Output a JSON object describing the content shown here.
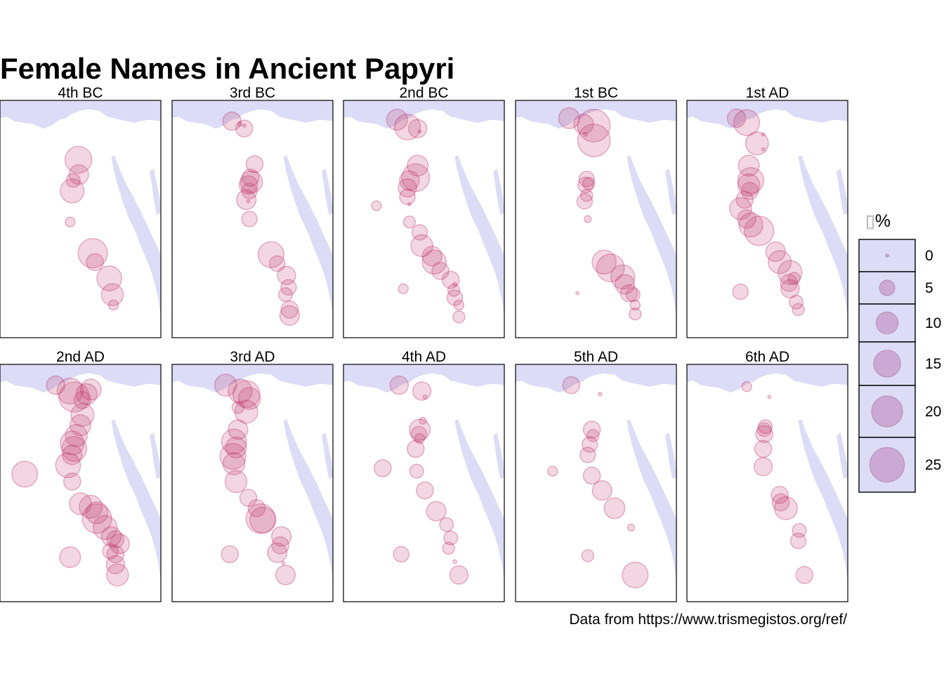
{
  "chart_data": {
    "type": "scatter",
    "title": "Female Names in Ancient Papyri",
    "caption": "Data from https://www.trismegistos.org/ref/",
    "legend": {
      "title": "%",
      "position": "right",
      "breaks": [
        0,
        5,
        10,
        15,
        20,
        25
      ]
    },
    "colors": {
      "point": "#c0306a",
      "water": "#dcdcf7",
      "panel_border": "#000000",
      "legend_key_fill": "#dcdcf7",
      "legend_point": "#c080b8"
    },
    "coordinate_system": "longitude / latitude",
    "panels": [
      {
        "label": "4th BC",
        "points": [
          {
            "lon": 30.8,
            "lat": 29.8,
            "pct": 15
          },
          {
            "lon": 30.82,
            "lat": 29.3,
            "pct": 8
          },
          {
            "lon": 30.55,
            "lat": 29.1,
            "pct": 4
          },
          {
            "lon": 30.5,
            "lat": 28.75,
            "pct": 12
          },
          {
            "lon": 30.4,
            "lat": 27.7,
            "pct": 2
          },
          {
            "lon": 31.5,
            "lat": 26.65,
            "pct": 18
          },
          {
            "lon": 31.6,
            "lat": 26.35,
            "pct": 6
          },
          {
            "lon": 32.3,
            "lat": 25.8,
            "pct": 13
          },
          {
            "lon": 32.45,
            "lat": 25.25,
            "pct": 10
          },
          {
            "lon": 32.5,
            "lat": 24.9,
            "pct": 2
          }
        ]
      },
      {
        "label": "3rd BC",
        "points": [
          {
            "lon": 29.9,
            "lat": 31.1,
            "pct": 7
          },
          {
            "lon": 30.3,
            "lat": 31.0,
            "pct": 0.3
          },
          {
            "lon": 30.5,
            "lat": 30.95,
            "pct": 0.2
          },
          {
            "lon": 30.5,
            "lat": 30.85,
            "pct": 6
          },
          {
            "lon": 31.0,
            "lat": 29.65,
            "pct": 6
          },
          {
            "lon": 30.8,
            "lat": 29.2,
            "pct": 6
          },
          {
            "lon": 30.85,
            "lat": 29.05,
            "pct": 10
          },
          {
            "lon": 30.7,
            "lat": 28.95,
            "pct": 7
          },
          {
            "lon": 30.75,
            "lat": 28.75,
            "pct": 5
          },
          {
            "lon": 30.6,
            "lat": 28.45,
            "pct": 8
          },
          {
            "lon": 30.7,
            "lat": 28.4,
            "pct": 0.2
          },
          {
            "lon": 30.75,
            "lat": 27.8,
            "pct": 5
          },
          {
            "lon": 31.8,
            "lat": 26.6,
            "pct": 14
          },
          {
            "lon": 32.1,
            "lat": 26.3,
            "pct": 5
          },
          {
            "lon": 32.55,
            "lat": 25.9,
            "pct": 7
          },
          {
            "lon": 32.65,
            "lat": 25.5,
            "pct": 5
          },
          {
            "lon": 32.5,
            "lat": 25.25,
            "pct": 4
          },
          {
            "lon": 32.7,
            "lat": 24.75,
            "pct": 6
          },
          {
            "lon": 32.7,
            "lat": 24.55,
            "pct": 8
          }
        ]
      },
      {
        "label": "2nd BC",
        "points": [
          {
            "lon": 29.6,
            "lat": 31.15,
            "pct": 9
          },
          {
            "lon": 30.1,
            "lat": 30.9,
            "pct": 14
          },
          {
            "lon": 30.6,
            "lat": 30.85,
            "pct": 7
          },
          {
            "lon": 30.7,
            "lat": 30.75,
            "pct": 0.2
          },
          {
            "lon": 30.6,
            "lat": 29.6,
            "pct": 9
          },
          {
            "lon": 30.5,
            "lat": 29.2,
            "pct": 16
          },
          {
            "lon": 30.2,
            "lat": 29.1,
            "pct": 8
          },
          {
            "lon": 30.1,
            "lat": 28.85,
            "pct": 7
          },
          {
            "lon": 30.1,
            "lat": 28.55,
            "pct": 5
          },
          {
            "lon": 30.2,
            "lat": 28.3,
            "pct": 0.2
          },
          {
            "lon": 28.6,
            "lat": 28.25,
            "pct": 2
          },
          {
            "lon": 30.2,
            "lat": 27.7,
            "pct": 3
          },
          {
            "lon": 30.7,
            "lat": 27.35,
            "pct": 5
          },
          {
            "lon": 30.8,
            "lat": 26.9,
            "pct": 10
          },
          {
            "lon": 31.3,
            "lat": 26.55,
            "pct": 8
          },
          {
            "lon": 31.4,
            "lat": 26.35,
            "pct": 12
          },
          {
            "lon": 31.7,
            "lat": 26.05,
            "pct": 6
          },
          {
            "lon": 32.2,
            "lat": 25.75,
            "pct": 6
          },
          {
            "lon": 32.4,
            "lat": 25.6,
            "pct": 0.3
          },
          {
            "lon": 32.35,
            "lat": 25.4,
            "pct": 3
          },
          {
            "lon": 32.4,
            "lat": 25.15,
            "pct": 5
          },
          {
            "lon": 29.9,
            "lat": 25.45,
            "pct": 2
          },
          {
            "lon": 32.6,
            "lat": 24.9,
            "pct": 2
          },
          {
            "lon": 32.6,
            "lat": 24.5,
            "pct": 3
          }
        ]
      },
      {
        "label": "1st BC",
        "points": [
          {
            "lon": 29.6,
            "lat": 31.2,
            "pct": 9
          },
          {
            "lon": 30.3,
            "lat": 31.0,
            "pct": 8
          },
          {
            "lon": 30.8,
            "lat": 30.95,
            "pct": 22
          },
          {
            "lon": 30.4,
            "lat": 30.65,
            "pct": 0.3
          },
          {
            "lon": 30.8,
            "lat": 30.45,
            "pct": 22
          },
          {
            "lon": 30.45,
            "lat": 29.15,
            "pct": 5
          },
          {
            "lon": 30.55,
            "lat": 29.0,
            "pct": 3
          },
          {
            "lon": 30.4,
            "lat": 28.95,
            "pct": 5
          },
          {
            "lon": 30.45,
            "lat": 28.6,
            "pct": 3
          },
          {
            "lon": 30.35,
            "lat": 28.4,
            "pct": 5
          },
          {
            "lon": 30.5,
            "lat": 27.8,
            "pct": 1
          },
          {
            "lon": 31.3,
            "lat": 26.35,
            "pct": 12
          },
          {
            "lon": 31.6,
            "lat": 26.15,
            "pct": 16
          },
          {
            "lon": 32.2,
            "lat": 25.85,
            "pct": 12
          },
          {
            "lon": 32.3,
            "lat": 25.6,
            "pct": 8
          },
          {
            "lon": 32.5,
            "lat": 25.3,
            "pct": 6
          },
          {
            "lon": 32.7,
            "lat": 25.25,
            "pct": 4
          },
          {
            "lon": 32.8,
            "lat": 24.9,
            "pct": 2
          },
          {
            "lon": 32.8,
            "lat": 24.6,
            "pct": 3
          },
          {
            "lon": 30.0,
            "lat": 25.3,
            "pct": 0.2
          }
        ]
      },
      {
        "label": "1st AD",
        "points": [
          {
            "lon": 29.4,
            "lat": 31.2,
            "pct": 7
          },
          {
            "lon": 29.9,
            "lat": 31.05,
            "pct": 14
          },
          {
            "lon": 30.7,
            "lat": 30.65,
            "pct": 0.2
          },
          {
            "lon": 30.4,
            "lat": 30.35,
            "pct": 11
          },
          {
            "lon": 30.7,
            "lat": 30.15,
            "pct": 0.2
          },
          {
            "lon": 30.0,
            "lat": 29.6,
            "pct": 9
          },
          {
            "lon": 30.1,
            "lat": 29.1,
            "pct": 14
          },
          {
            "lon": 30.0,
            "lat": 28.95,
            "pct": 10
          },
          {
            "lon": 30.05,
            "lat": 28.75,
            "pct": 6
          },
          {
            "lon": 29.8,
            "lat": 28.45,
            "pct": 6
          },
          {
            "lon": 29.6,
            "lat": 28.15,
            "pct": 10
          },
          {
            "lon": 29.9,
            "lat": 27.8,
            "pct": 7
          },
          {
            "lon": 30.1,
            "lat": 27.6,
            "pct": 12
          },
          {
            "lon": 30.5,
            "lat": 27.4,
            "pct": 18
          },
          {
            "lon": 31.3,
            "lat": 26.7,
            "pct": 8
          },
          {
            "lon": 31.5,
            "lat": 26.35,
            "pct": 11
          },
          {
            "lon": 32.0,
            "lat": 26.0,
            "pct": 12
          },
          {
            "lon": 32.2,
            "lat": 25.8,
            "pct": 3
          },
          {
            "lon": 31.95,
            "lat": 25.65,
            "pct": 6
          },
          {
            "lon": 32.0,
            "lat": 25.45,
            "pct": 7
          },
          {
            "lon": 32.3,
            "lat": 25.0,
            "pct": 4
          },
          {
            "lon": 32.4,
            "lat": 24.75,
            "pct": 3
          },
          {
            "lon": 29.6,
            "lat": 25.35,
            "pct": 5
          }
        ]
      },
      {
        "label": "2nd AD",
        "points": [
          {
            "lon": 29.7,
            "lat": 31.1,
            "pct": 7
          },
          {
            "lon": 30.4,
            "lat": 30.9,
            "pct": 14
          },
          {
            "lon": 30.6,
            "lat": 30.7,
            "pct": 19
          },
          {
            "lon": 31.2,
            "lat": 30.8,
            "pct": 9
          },
          {
            "lon": 31.4,
            "lat": 30.95,
            "pct": 9
          },
          {
            "lon": 31.0,
            "lat": 30.6,
            "pct": 6
          },
          {
            "lon": 31.0,
            "lat": 30.1,
            "pct": 11
          },
          {
            "lon": 30.9,
            "lat": 29.75,
            "pct": 9
          },
          {
            "lon": 30.7,
            "lat": 29.4,
            "pct": 10
          },
          {
            "lon": 30.5,
            "lat": 29.15,
            "pct": 12
          },
          {
            "lon": 30.6,
            "lat": 28.95,
            "pct": 13
          },
          {
            "lon": 30.5,
            "lat": 28.75,
            "pct": 8
          },
          {
            "lon": 30.3,
            "lat": 28.4,
            "pct": 13
          },
          {
            "lon": 30.5,
            "lat": 27.85,
            "pct": 6
          },
          {
            "lon": 28.2,
            "lat": 28.1,
            "pct": 14
          },
          {
            "lon": 30.9,
            "lat": 27.1,
            "pct": 10
          },
          {
            "lon": 31.4,
            "lat": 27.0,
            "pct": 11
          },
          {
            "lon": 31.7,
            "lat": 26.8,
            "pct": 10
          },
          {
            "lon": 31.7,
            "lat": 26.6,
            "pct": 18
          },
          {
            "lon": 32.1,
            "lat": 26.3,
            "pct": 12
          },
          {
            "lon": 32.4,
            "lat": 26.0,
            "pct": 8
          },
          {
            "lon": 32.6,
            "lat": 25.9,
            "pct": 6
          },
          {
            "lon": 32.8,
            "lat": 25.75,
            "pct": 8
          },
          {
            "lon": 32.35,
            "lat": 25.5,
            "pct": 5
          },
          {
            "lon": 32.6,
            "lat": 25.4,
            "pct": 6
          },
          {
            "lon": 32.6,
            "lat": 25.05,
            "pct": 7
          },
          {
            "lon": 32.7,
            "lat": 24.7,
            "pct": 10
          },
          {
            "lon": 30.4,
            "lat": 25.3,
            "pct": 9
          }
        ]
      },
      {
        "label": "3rd AD",
        "points": [
          {
            "lon": 29.6,
            "lat": 31.1,
            "pct": 10
          },
          {
            "lon": 30.3,
            "lat": 30.9,
            "pct": 12
          },
          {
            "lon": 30.6,
            "lat": 30.8,
            "pct": 15
          },
          {
            "lon": 30.75,
            "lat": 30.65,
            "pct": 10
          },
          {
            "lon": 30.2,
            "lat": 30.35,
            "pct": 3
          },
          {
            "lon": 30.6,
            "lat": 30.2,
            "pct": 11
          },
          {
            "lon": 30.2,
            "lat": 29.6,
            "pct": 8
          },
          {
            "lon": 30.0,
            "lat": 29.2,
            "pct": 13
          },
          {
            "lon": 30.1,
            "lat": 29.0,
            "pct": 9
          },
          {
            "lon": 29.95,
            "lat": 28.7,
            "pct": 14
          },
          {
            "lon": 30.0,
            "lat": 28.45,
            "pct": 10
          },
          {
            "lon": 30.1,
            "lat": 27.85,
            "pct": 10
          },
          {
            "lon": 30.7,
            "lat": 27.3,
            "pct": 6
          },
          {
            "lon": 31.1,
            "lat": 26.95,
            "pct": 6
          },
          {
            "lon": 31.3,
            "lat": 26.6,
            "pct": 18
          },
          {
            "lon": 31.4,
            "lat": 26.55,
            "pct": 14
          },
          {
            "lon": 32.3,
            "lat": 26.0,
            "pct": 8
          },
          {
            "lon": 32.25,
            "lat": 25.7,
            "pct": 6
          },
          {
            "lon": 32.1,
            "lat": 25.45,
            "pct": 8
          },
          {
            "lon": 32.4,
            "lat": 25.1,
            "pct": 0.2
          },
          {
            "lon": 32.5,
            "lat": 24.7,
            "pct": 8
          },
          {
            "lon": 29.8,
            "lat": 25.4,
            "pct": 6
          }
        ]
      },
      {
        "label": "4th AD",
        "points": [
          {
            "lon": 29.7,
            "lat": 31.1,
            "pct": 7
          },
          {
            "lon": 30.8,
            "lat": 30.9,
            "pct": 7
          },
          {
            "lon": 30.95,
            "lat": 30.7,
            "pct": 0.3
          },
          {
            "lon": 30.85,
            "lat": 29.9,
            "pct": 1
          },
          {
            "lon": 30.7,
            "lat": 29.6,
            "pct": 9
          },
          {
            "lon": 30.65,
            "lat": 29.45,
            "pct": 5
          },
          {
            "lon": 30.7,
            "lat": 29.3,
            "pct": 2
          },
          {
            "lon": 30.5,
            "lat": 28.95,
            "pct": 6
          },
          {
            "lon": 28.9,
            "lat": 28.3,
            "pct": 6
          },
          {
            "lon": 30.55,
            "lat": 28.2,
            "pct": 4
          },
          {
            "lon": 30.95,
            "lat": 27.55,
            "pct": 6
          },
          {
            "lon": 31.5,
            "lat": 26.85,
            "pct": 8
          },
          {
            "lon": 32.0,
            "lat": 26.4,
            "pct": 4
          },
          {
            "lon": 32.2,
            "lat": 25.95,
            "pct": 4
          },
          {
            "lon": 32.1,
            "lat": 25.6,
            "pct": 3
          },
          {
            "lon": 32.4,
            "lat": 25.15,
            "pct": 0.3
          },
          {
            "lon": 32.6,
            "lat": 24.7,
            "pct": 7
          },
          {
            "lon": 29.8,
            "lat": 25.4,
            "pct": 5
          }
        ]
      },
      {
        "label": "5th AD",
        "points": [
          {
            "lon": 29.7,
            "lat": 31.1,
            "pct": 6
          },
          {
            "lon": 31.1,
            "lat": 30.8,
            "pct": 0.3
          },
          {
            "lon": 30.7,
            "lat": 29.6,
            "pct": 6
          },
          {
            "lon": 30.75,
            "lat": 29.4,
            "pct": 3
          },
          {
            "lon": 30.6,
            "lat": 29.1,
            "pct": 5
          },
          {
            "lon": 30.5,
            "lat": 28.75,
            "pct": 5
          },
          {
            "lon": 28.8,
            "lat": 28.2,
            "pct": 2
          },
          {
            "lon": 30.7,
            "lat": 28.05,
            "pct": 6
          },
          {
            "lon": 31.2,
            "lat": 27.55,
            "pct": 8
          },
          {
            "lon": 31.8,
            "lat": 26.95,
            "pct": 9
          },
          {
            "lon": 32.6,
            "lat": 26.3,
            "pct": 1
          },
          {
            "lon": 30.5,
            "lat": 25.35,
            "pct": 3
          },
          {
            "lon": 32.8,
            "lat": 24.7,
            "pct": 14
          }
        ]
      },
      {
        "label": "6th AD",
        "points": [
          {
            "lon": 29.9,
            "lat": 31.05,
            "pct": 2
          },
          {
            "lon": 31.0,
            "lat": 30.7,
            "pct": 0.2
          },
          {
            "lon": 30.8,
            "lat": 29.7,
            "pct": 4
          },
          {
            "lon": 30.75,
            "lat": 29.6,
            "pct": 4
          },
          {
            "lon": 30.75,
            "lat": 29.45,
            "pct": 6
          },
          {
            "lon": 30.7,
            "lat": 28.95,
            "pct": 6
          },
          {
            "lon": 30.7,
            "lat": 28.35,
            "pct": 7
          },
          {
            "lon": 31.5,
            "lat": 27.4,
            "pct": 6
          },
          {
            "lon": 31.55,
            "lat": 27.15,
            "pct": 6
          },
          {
            "lon": 31.8,
            "lat": 26.95,
            "pct": 11
          },
          {
            "lon": 32.45,
            "lat": 26.2,
            "pct": 4
          },
          {
            "lon": 32.4,
            "lat": 25.85,
            "pct": 5
          },
          {
            "lon": 32.7,
            "lat": 24.7,
            "pct": 6
          }
        ]
      }
    ]
  }
}
